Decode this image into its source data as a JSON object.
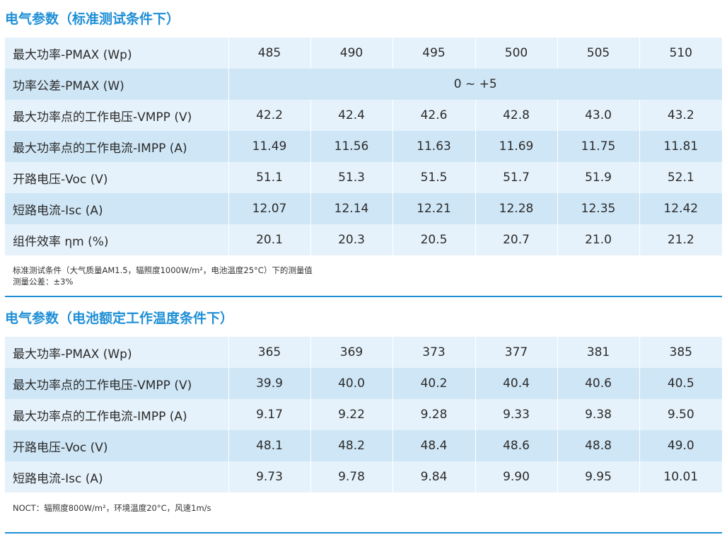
{
  "stc": {
    "heading": "电气参数（标准测试条件下）",
    "rows": [
      {
        "label": "最大功率-PMAX (Wp)",
        "values": [
          "485",
          "490",
          "495",
          "500",
          "505",
          "510"
        ]
      },
      {
        "label": "功率公差-PMAX (W)",
        "span_value": "0 ~ +5"
      },
      {
        "label": "最大功率点的工作电压-VMPP (V)",
        "values": [
          "42.2",
          "42.4",
          "42.6",
          "42.8",
          "43.0",
          "43.2"
        ]
      },
      {
        "label": "最大功率点的工作电流-IMPP (A)",
        "values": [
          "11.49",
          "11.56",
          "11.63",
          "11.69",
          "11.75",
          "11.81"
        ]
      },
      {
        "label": "开路电压-Voc (V)",
        "values": [
          "51.1",
          "51.3",
          "51.5",
          "51.7",
          "51.9",
          "52.1"
        ]
      },
      {
        "label": "短路电流-Isc (A)",
        "values": [
          "12.07",
          "12.14",
          "12.21",
          "12.28",
          "12.35",
          "12.42"
        ]
      },
      {
        "label": "组件效率 ηm (%)",
        "values": [
          "20.1",
          "20.3",
          "20.5",
          "20.7",
          "21.0",
          "21.2"
        ]
      }
    ],
    "note_line1": "标准测试条件（大气质量AM1.5，辐照度1000W/m²，电池温度25°C）下的测量值",
    "note_line2": "测量公差：±3%"
  },
  "noct": {
    "heading": "电气参数（电池额定工作温度条件下）",
    "rows": [
      {
        "label": "最大功率-PMAX (Wp)",
        "values": [
          "365",
          "369",
          "373",
          "377",
          "381",
          "385"
        ]
      },
      {
        "label": "最大功率点的工作电压-VMPP (V)",
        "values": [
          "39.9",
          "40.0",
          "40.2",
          "40.4",
          "40.6",
          "40.5"
        ]
      },
      {
        "label": "最大功率点的工作电流-IMPP (A)",
        "values": [
          "9.17",
          "9.22",
          "9.28",
          "9.33",
          "9.38",
          "9.50"
        ]
      },
      {
        "label": "开路电压-Voc (V)",
        "values": [
          "48.1",
          "48.2",
          "48.4",
          "48.6",
          "48.8",
          "49.0"
        ]
      },
      {
        "label": "短路电流-Isc (A)",
        "values": [
          "9.73",
          "9.78",
          "9.84",
          "9.90",
          "9.95",
          "10.01"
        ]
      }
    ],
    "note": "NOCT：辐照度800W/m²，环境温度20°C，风速1m/s"
  }
}
